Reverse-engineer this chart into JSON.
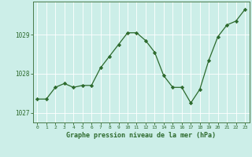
{
  "x": [
    0,
    1,
    2,
    3,
    4,
    5,
    6,
    7,
    8,
    9,
    10,
    11,
    12,
    13,
    14,
    15,
    16,
    17,
    18,
    19,
    20,
    21,
    22,
    23
  ],
  "y": [
    1027.35,
    1027.35,
    1027.65,
    1027.75,
    1027.65,
    1027.7,
    1027.7,
    1028.15,
    1028.45,
    1028.75,
    1029.05,
    1029.05,
    1028.85,
    1028.55,
    1027.95,
    1027.65,
    1027.65,
    1027.25,
    1027.6,
    1028.35,
    1028.95,
    1029.25,
    1029.35,
    1029.65
  ],
  "ylim": [
    1026.75,
    1029.85
  ],
  "yticks": [
    1027,
    1028,
    1029
  ],
  "xticks": [
    0,
    1,
    2,
    3,
    4,
    5,
    6,
    7,
    8,
    9,
    10,
    11,
    12,
    13,
    14,
    15,
    16,
    17,
    18,
    19,
    20,
    21,
    22,
    23
  ],
  "xlabel": "Graphe pression niveau de la mer (hPa)",
  "line_color": "#2d6a2d",
  "marker_color": "#2d6a2d",
  "bg_color": "#cceee8",
  "grid_color": "#ffffff",
  "xlabel_color": "#2d6a2d",
  "tick_color": "#2d6a2d",
  "spine_color": "#4a7a4a"
}
